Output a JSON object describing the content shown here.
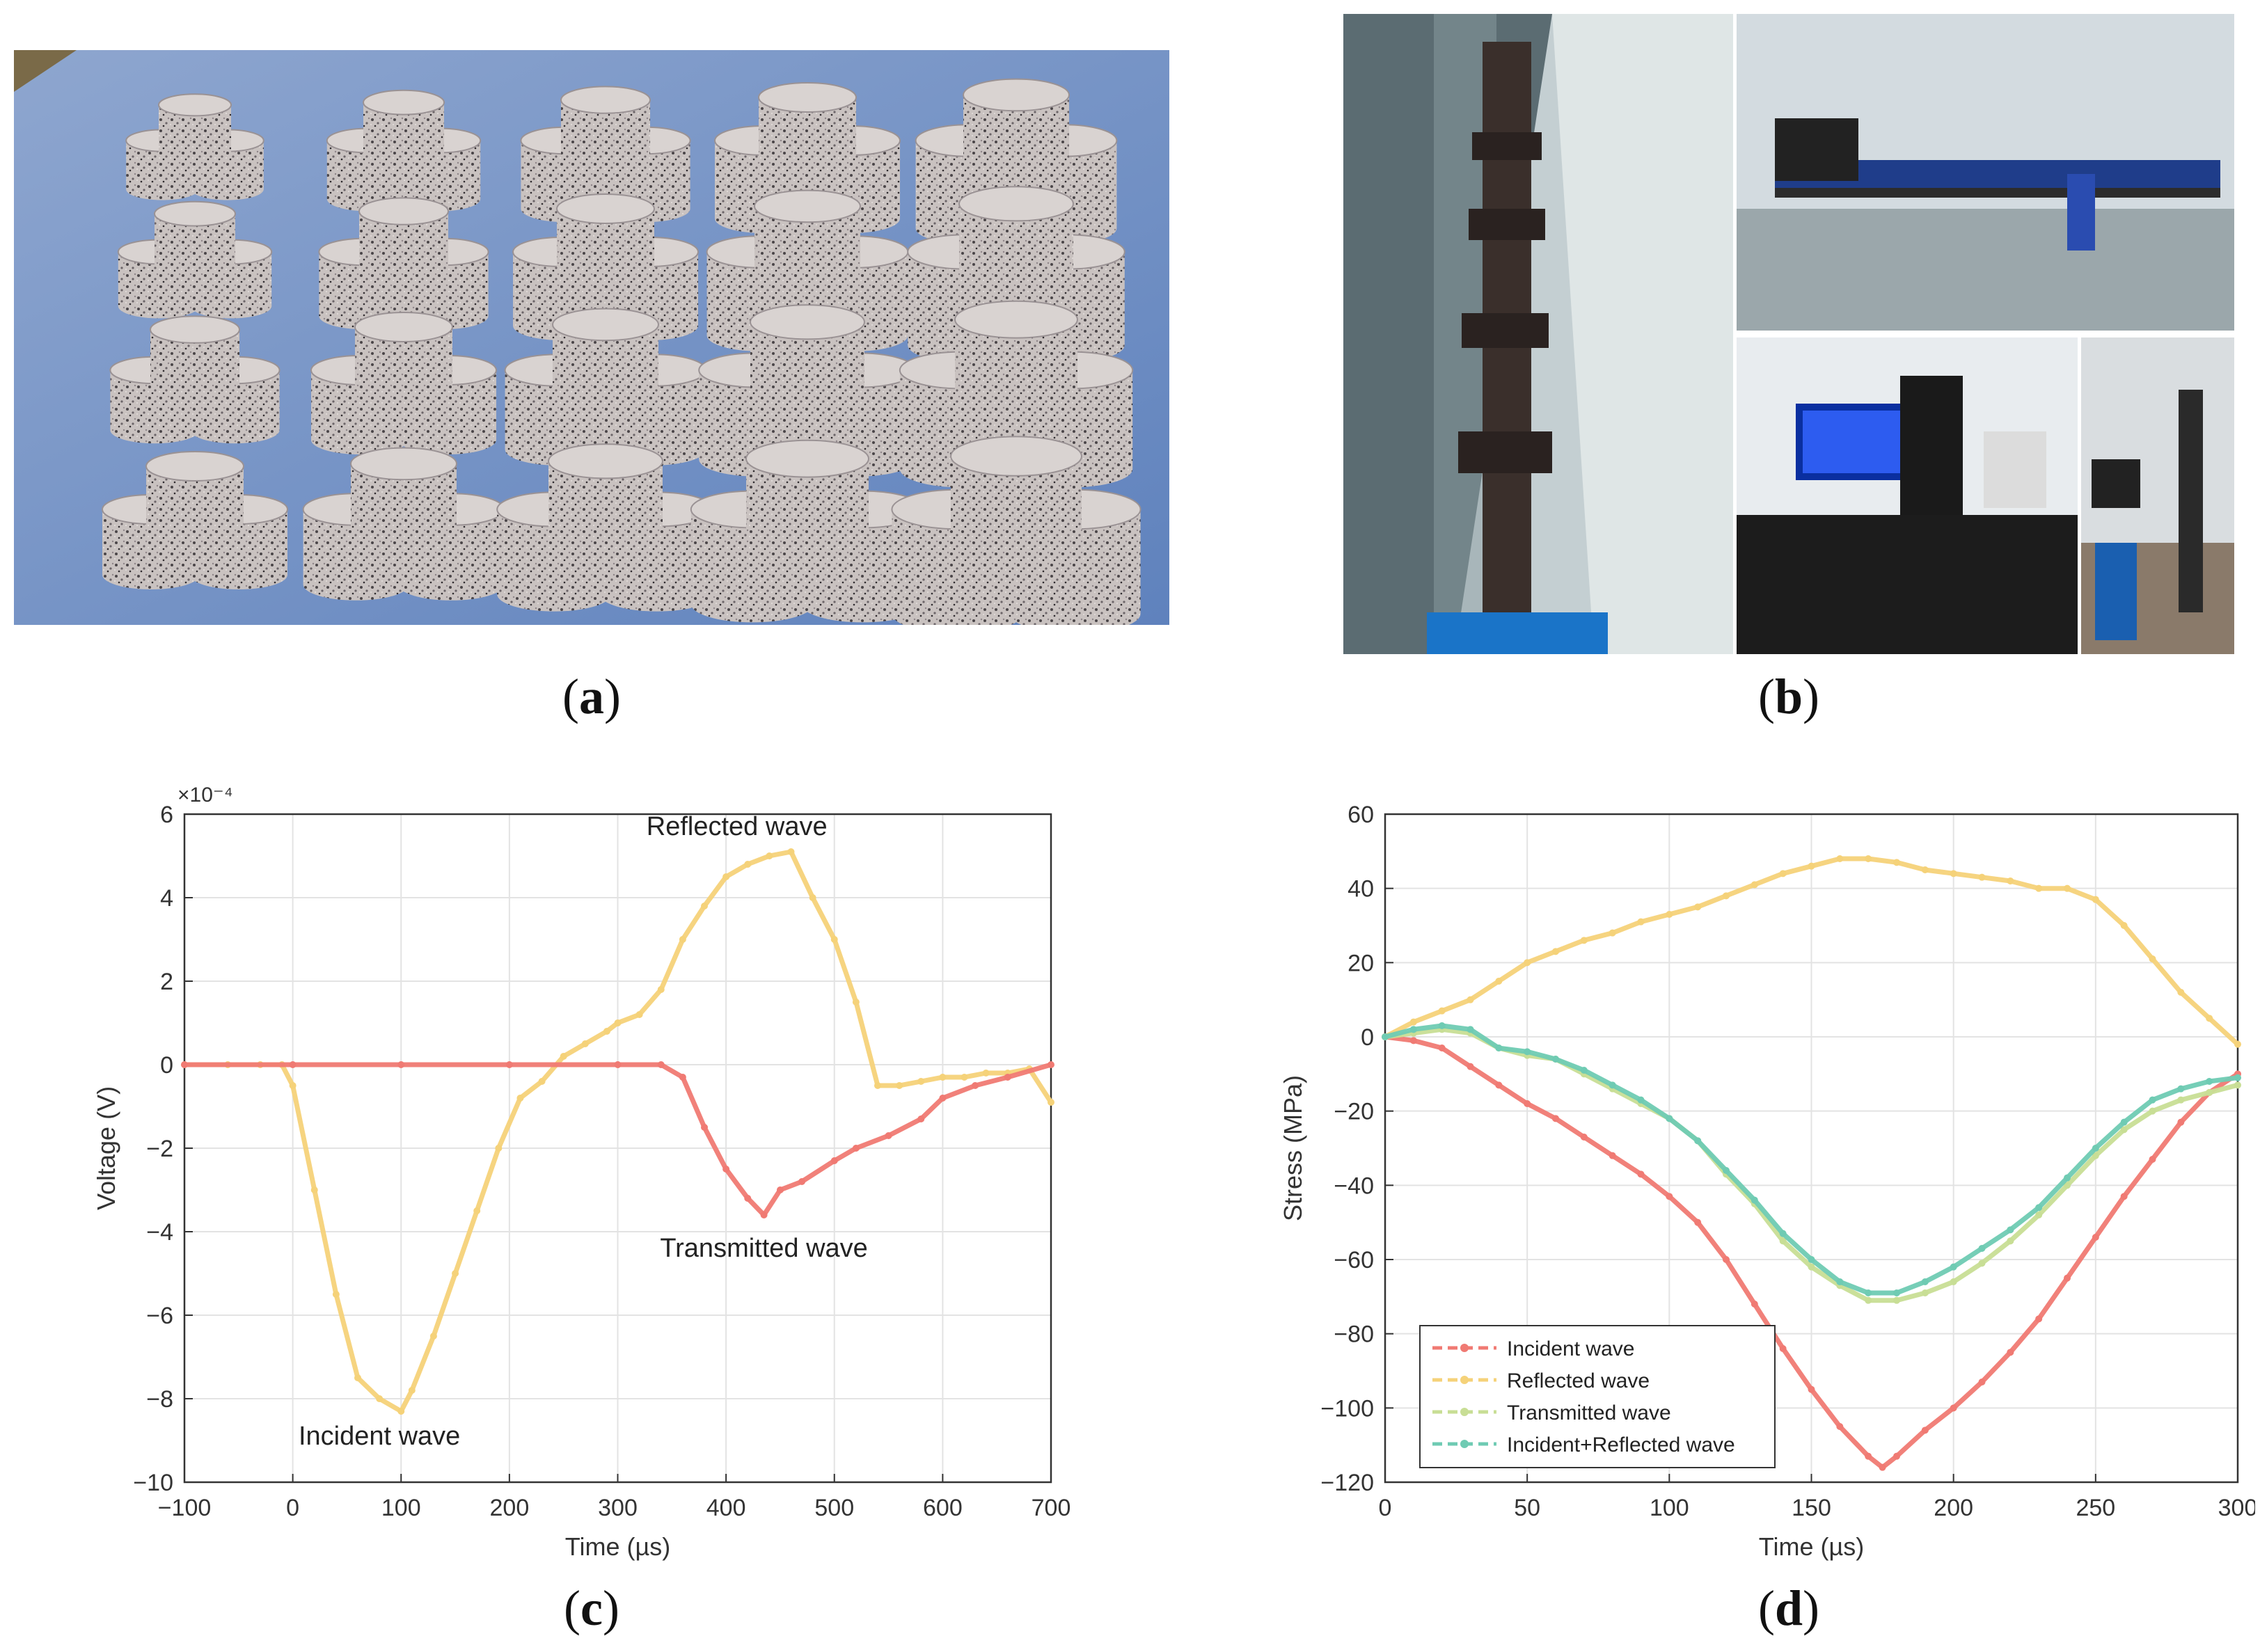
{
  "captions": {
    "a": "a",
    "b": "b",
    "c": "c",
    "d": "d"
  },
  "photo_a": {
    "subject": "granite cylinder specimens on blue cloth"
  },
  "photo_b": {
    "subject": "SHPB test apparatus, oscilloscope and gas cylinder"
  },
  "chart_data": [
    {
      "type": "line",
      "panel": "c",
      "xlabel": "Time (µs)",
      "ylabel": "Voltage (V)",
      "exponent_label": "×10⁻⁴",
      "xlim": [
        -100,
        700
      ],
      "ylim": [
        -10,
        6
      ],
      "xticks": [
        -100,
        0,
        100,
        200,
        300,
        400,
        500,
        600,
        700
      ],
      "yticks": [
        -10,
        -8,
        -6,
        -4,
        -2,
        0,
        2,
        4,
        6
      ],
      "xtick_labels": [
        "−100",
        "0",
        "100",
        "200",
        "300",
        "400",
        "500",
        "600",
        "700"
      ],
      "ytick_labels": [
        "−10",
        "−8",
        "−6",
        "−4",
        "−2",
        "0",
        "2",
        "4",
        "6"
      ],
      "grid": true,
      "annotations": [
        "Reflected wave",
        "Transmitted wave",
        "Incident wave"
      ],
      "series": [
        {
          "color": "#F5D279",
          "x": [
            -100,
            -60,
            -30,
            -10,
            0,
            20,
            40,
            60,
            80,
            100,
            110,
            130,
            150,
            170,
            190,
            210,
            230,
            250,
            270,
            290,
            300,
            320,
            340,
            360,
            380,
            400,
            420,
            440,
            460,
            480,
            500,
            520,
            540,
            560,
            580,
            600,
            620,
            640,
            660,
            680,
            700
          ],
          "y": [
            0,
            0,
            0,
            0,
            -0.5,
            -3,
            -5.5,
            -7.5,
            -8,
            -8.3,
            -7.8,
            -6.5,
            -5,
            -3.5,
            -2,
            -0.8,
            -0.4,
            0.2,
            0.5,
            0.8,
            1,
            1.2,
            1.8,
            3,
            3.8,
            4.5,
            4.8,
            5,
            5.1,
            4,
            3,
            1.5,
            -0.5,
            -0.5,
            -0.4,
            -0.3,
            -0.3,
            -0.2,
            -0.2,
            -0.1,
            -0.9
          ]
        },
        {
          "color": "#F07A73",
          "x": [
            -100,
            0,
            100,
            200,
            300,
            340,
            360,
            380,
            400,
            420,
            435,
            450,
            470,
            500,
            520,
            550,
            580,
            600,
            630,
            660,
            700
          ],
          "y": [
            0,
            0,
            0,
            0,
            0,
            0,
            -0.3,
            -1.5,
            -2.5,
            -3.2,
            -3.6,
            -3,
            -2.8,
            -2.3,
            -2,
            -1.7,
            -1.3,
            -0.8,
            -0.5,
            -0.3,
            0
          ]
        }
      ]
    },
    {
      "type": "line",
      "panel": "d",
      "xlabel": "Time (µs)",
      "ylabel": "Stress (MPa)",
      "xlim": [
        0,
        300
      ],
      "ylim": [
        -120,
        60
      ],
      "xticks": [
        0,
        50,
        100,
        150,
        200,
        250,
        300
      ],
      "yticks": [
        -120,
        -100,
        -80,
        -60,
        -40,
        -20,
        0,
        20,
        40,
        60
      ],
      "xtick_labels": [
        "0",
        "50",
        "100",
        "150",
        "200",
        "250",
        "300"
      ],
      "ytick_labels": [
        "−120",
        "−100",
        "−80",
        "−60",
        "−40",
        "−20",
        "0",
        "20",
        "40",
        "60"
      ],
      "grid": true,
      "legend_position": "bottom-left",
      "series": [
        {
          "name": "Incident wave",
          "color": "#F07A73",
          "x": [
            0,
            10,
            20,
            30,
            40,
            50,
            60,
            70,
            80,
            90,
            100,
            110,
            120,
            130,
            140,
            150,
            160,
            170,
            175,
            180,
            190,
            200,
            210,
            220,
            230,
            240,
            250,
            260,
            270,
            280,
            290,
            300
          ],
          "y": [
            0,
            -1,
            -3,
            -8,
            -13,
            -18,
            -22,
            -27,
            -32,
            -37,
            -43,
            -50,
            -60,
            -72,
            -84,
            -95,
            -105,
            -113,
            -116,
            -113,
            -106,
            -100,
            -93,
            -85,
            -76,
            -65,
            -54,
            -43,
            -33,
            -23,
            -15,
            -10
          ]
        },
        {
          "name": "Reflected wave",
          "color": "#F5D279",
          "x": [
            0,
            10,
            20,
            30,
            40,
            50,
            60,
            70,
            80,
            90,
            100,
            110,
            120,
            130,
            140,
            150,
            160,
            170,
            180,
            190,
            200,
            210,
            220,
            230,
            240,
            250,
            260,
            270,
            280,
            290,
            300
          ],
          "y": [
            0,
            4,
            7,
            10,
            15,
            20,
            23,
            26,
            28,
            31,
            33,
            35,
            38,
            41,
            44,
            46,
            48,
            48,
            47,
            45,
            44,
            43,
            42,
            40,
            40,
            37,
            30,
            21,
            12,
            5,
            -2
          ]
        },
        {
          "name": "Transmitted wave",
          "color": "#C8DE95",
          "x": [
            0,
            10,
            20,
            30,
            40,
            50,
            60,
            70,
            80,
            90,
            100,
            110,
            120,
            130,
            140,
            150,
            160,
            170,
            180,
            190,
            200,
            210,
            220,
            230,
            240,
            250,
            260,
            270,
            280,
            290,
            300
          ],
          "y": [
            0,
            1,
            2,
            1,
            -3,
            -5,
            -6,
            -10,
            -14,
            -18,
            -22,
            -28,
            -37,
            -45,
            -55,
            -62,
            -67,
            -71,
            -71,
            -69,
            -66,
            -61,
            -55,
            -48,
            -40,
            -32,
            -25,
            -20,
            -17,
            -15,
            -13
          ]
        },
        {
          "name": "Incident+Reflected wave",
          "color": "#6FCBB3",
          "x": [
            0,
            10,
            20,
            30,
            40,
            50,
            60,
            70,
            80,
            90,
            100,
            110,
            120,
            130,
            140,
            150,
            160,
            170,
            180,
            190,
            200,
            210,
            220,
            230,
            240,
            250,
            260,
            270,
            280,
            290,
            300
          ],
          "y": [
            0,
            2,
            3,
            2,
            -3,
            -4,
            -6,
            -9,
            -13,
            -17,
            -22,
            -28,
            -36,
            -44,
            -53,
            -60,
            -66,
            -69,
            -69,
            -66,
            -62,
            -57,
            -52,
            -46,
            -38,
            -30,
            -23,
            -17,
            -14,
            -12,
            -11
          ]
        }
      ]
    }
  ]
}
